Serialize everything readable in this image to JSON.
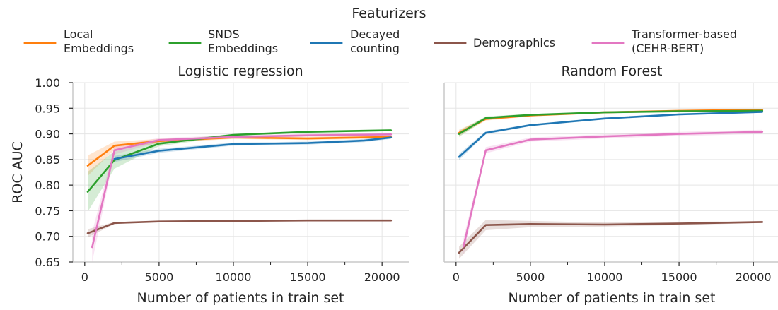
{
  "legend": {
    "title": "Featurizers",
    "entries": [
      {
        "key": "local",
        "lines": [
          "Local",
          "Embeddings"
        ],
        "color": "#ff7f0e"
      },
      {
        "key": "snds",
        "lines": [
          "SNDS",
          "Embeddings"
        ],
        "color": "#2ca02c"
      },
      {
        "key": "decayed",
        "lines": [
          "Decayed",
          "counting"
        ],
        "color": "#1f77b4"
      },
      {
        "key": "demographics",
        "lines": [
          "Demographics"
        ],
        "color": "#8c564b"
      },
      {
        "key": "transformer",
        "lines": [
          "Transformer-based",
          "(CEHR-BERT)"
        ],
        "color": "#e377c2"
      }
    ]
  },
  "chart_data": [
    {
      "type": "line",
      "title": "Logistic regression",
      "xlabel": "Number of patients in train set",
      "ylabel": "ROC AUC",
      "xlim": [
        -800,
        21800
      ],
      "ylim": [
        0.65,
        1.0
      ],
      "xticks": [
        0,
        5000,
        10000,
        15000,
        20000
      ],
      "xtick_labels": [
        "0",
        "5000",
        "10000",
        "15000",
        "20000"
      ],
      "yticks": [
        0.65,
        0.7,
        0.75,
        0.8,
        0.85,
        0.9,
        0.95,
        1.0
      ],
      "ytick_labels": [
        "0.65",
        "0.70",
        "0.75",
        "0.80",
        "0.85",
        "0.90",
        "0.95",
        "1.00"
      ],
      "grid": true,
      "series": [
        {
          "key": "local",
          "color": "#ff7f0e",
          "x": [
            200,
            2000,
            5000,
            10000,
            15000,
            20600
          ],
          "y": [
            0.838,
            0.877,
            0.886,
            0.893,
            0.891,
            0.894
          ],
          "lower": [
            0.818,
            0.869,
            0.882,
            0.89,
            0.888,
            0.891
          ],
          "upper": [
            0.858,
            0.885,
            0.89,
            0.896,
            0.894,
            0.897
          ]
        },
        {
          "key": "snds",
          "color": "#2ca02c",
          "x": [
            200,
            2000,
            5000,
            10000,
            15000,
            20600
          ],
          "y": [
            0.787,
            0.849,
            0.881,
            0.898,
            0.904,
            0.907
          ],
          "lower": [
            0.748,
            0.832,
            0.876,
            0.896,
            0.902,
            0.905
          ],
          "upper": [
            0.826,
            0.866,
            0.886,
            0.9,
            0.906,
            0.909
          ]
        },
        {
          "key": "decayed",
          "color": "#1f77b4",
          "x": [
            2000,
            5000,
            10000,
            15000,
            18800,
            20600
          ],
          "y": [
            0.851,
            0.867,
            0.88,
            0.882,
            0.887,
            0.893
          ],
          "lower": [
            0.845,
            0.863,
            0.877,
            0.879,
            0.884,
            0.89
          ],
          "upper": [
            0.857,
            0.871,
            0.883,
            0.885,
            0.89,
            0.896
          ]
        },
        {
          "key": "demographics",
          "color": "#8c564b",
          "x": [
            200,
            2000,
            5000,
            10000,
            15000,
            20600
          ],
          "y": [
            0.706,
            0.726,
            0.729,
            0.73,
            0.731,
            0.731
          ],
          "lower": [
            0.698,
            0.724,
            0.728,
            0.729,
            0.73,
            0.73
          ],
          "upper": [
            0.714,
            0.728,
            0.73,
            0.731,
            0.732,
            0.732
          ]
        },
        {
          "key": "transformer",
          "color": "#e377c2",
          "x": [
            500,
            2000,
            5000,
            10000,
            15000,
            20600
          ],
          "y": [
            0.679,
            0.868,
            0.888,
            0.894,
            0.897,
            0.899
          ],
          "lower": [
            0.65,
            0.86,
            0.884,
            0.891,
            0.894,
            0.896
          ],
          "upper": [
            0.708,
            0.876,
            0.892,
            0.897,
            0.9,
            0.902
          ]
        }
      ]
    },
    {
      "type": "line",
      "title": "Random Forest",
      "xlabel": "Number of patients in train set",
      "ylabel": "",
      "xlim": [
        -800,
        21800
      ],
      "ylim": [
        0.65,
        1.0
      ],
      "xticks": [
        0,
        5000,
        10000,
        15000,
        20000
      ],
      "xtick_labels": [
        "0",
        "5000",
        "10000",
        "15000",
        "20000"
      ],
      "yticks": [
        0.65,
        0.7,
        0.75,
        0.8,
        0.85,
        0.9,
        0.95,
        1.0
      ],
      "ytick_labels": [],
      "grid": true,
      "series": [
        {
          "key": "local",
          "color": "#ff7f0e",
          "x": [
            200,
            2000,
            5000,
            10000,
            15000,
            20600
          ],
          "y": [
            0.902,
            0.929,
            0.936,
            0.942,
            0.945,
            0.947
          ],
          "lower": [
            0.896,
            0.926,
            0.934,
            0.94,
            0.943,
            0.945
          ],
          "upper": [
            0.908,
            0.932,
            0.938,
            0.944,
            0.947,
            0.949
          ]
        },
        {
          "key": "snds",
          "color": "#2ca02c",
          "x": [
            200,
            2000,
            5000,
            10000,
            15000,
            20600
          ],
          "y": [
            0.9,
            0.931,
            0.937,
            0.942,
            0.944,
            0.945
          ],
          "lower": [
            0.894,
            0.928,
            0.935,
            0.94,
            0.942,
            0.943
          ],
          "upper": [
            0.906,
            0.934,
            0.939,
            0.944,
            0.946,
            0.947
          ]
        },
        {
          "key": "decayed",
          "color": "#1f77b4",
          "x": [
            200,
            2000,
            5000,
            10000,
            15000,
            20600
          ],
          "y": [
            0.855,
            0.902,
            0.917,
            0.93,
            0.938,
            0.943
          ],
          "lower": [
            0.849,
            0.899,
            0.915,
            0.928,
            0.936,
            0.941
          ],
          "upper": [
            0.861,
            0.905,
            0.919,
            0.932,
            0.94,
            0.945
          ]
        },
        {
          "key": "demographics",
          "color": "#8c564b",
          "x": [
            200,
            2000,
            5000,
            10000,
            15000,
            20600
          ],
          "y": [
            0.668,
            0.722,
            0.724,
            0.723,
            0.725,
            0.728
          ],
          "lower": [
            0.656,
            0.712,
            0.718,
            0.719,
            0.722,
            0.726
          ],
          "upper": [
            0.68,
            0.732,
            0.73,
            0.727,
            0.728,
            0.73
          ]
        },
        {
          "key": "transformer",
          "color": "#e377c2",
          "x": [
            500,
            2000,
            5000,
            10000,
            15000,
            20600
          ],
          "y": [
            0.68,
            0.868,
            0.889,
            0.895,
            0.9,
            0.904
          ],
          "lower": [
            0.664,
            0.862,
            0.885,
            0.891,
            0.896,
            0.9
          ],
          "upper": [
            0.696,
            0.874,
            0.893,
            0.899,
            0.904,
            0.908
          ]
        }
      ]
    }
  ]
}
